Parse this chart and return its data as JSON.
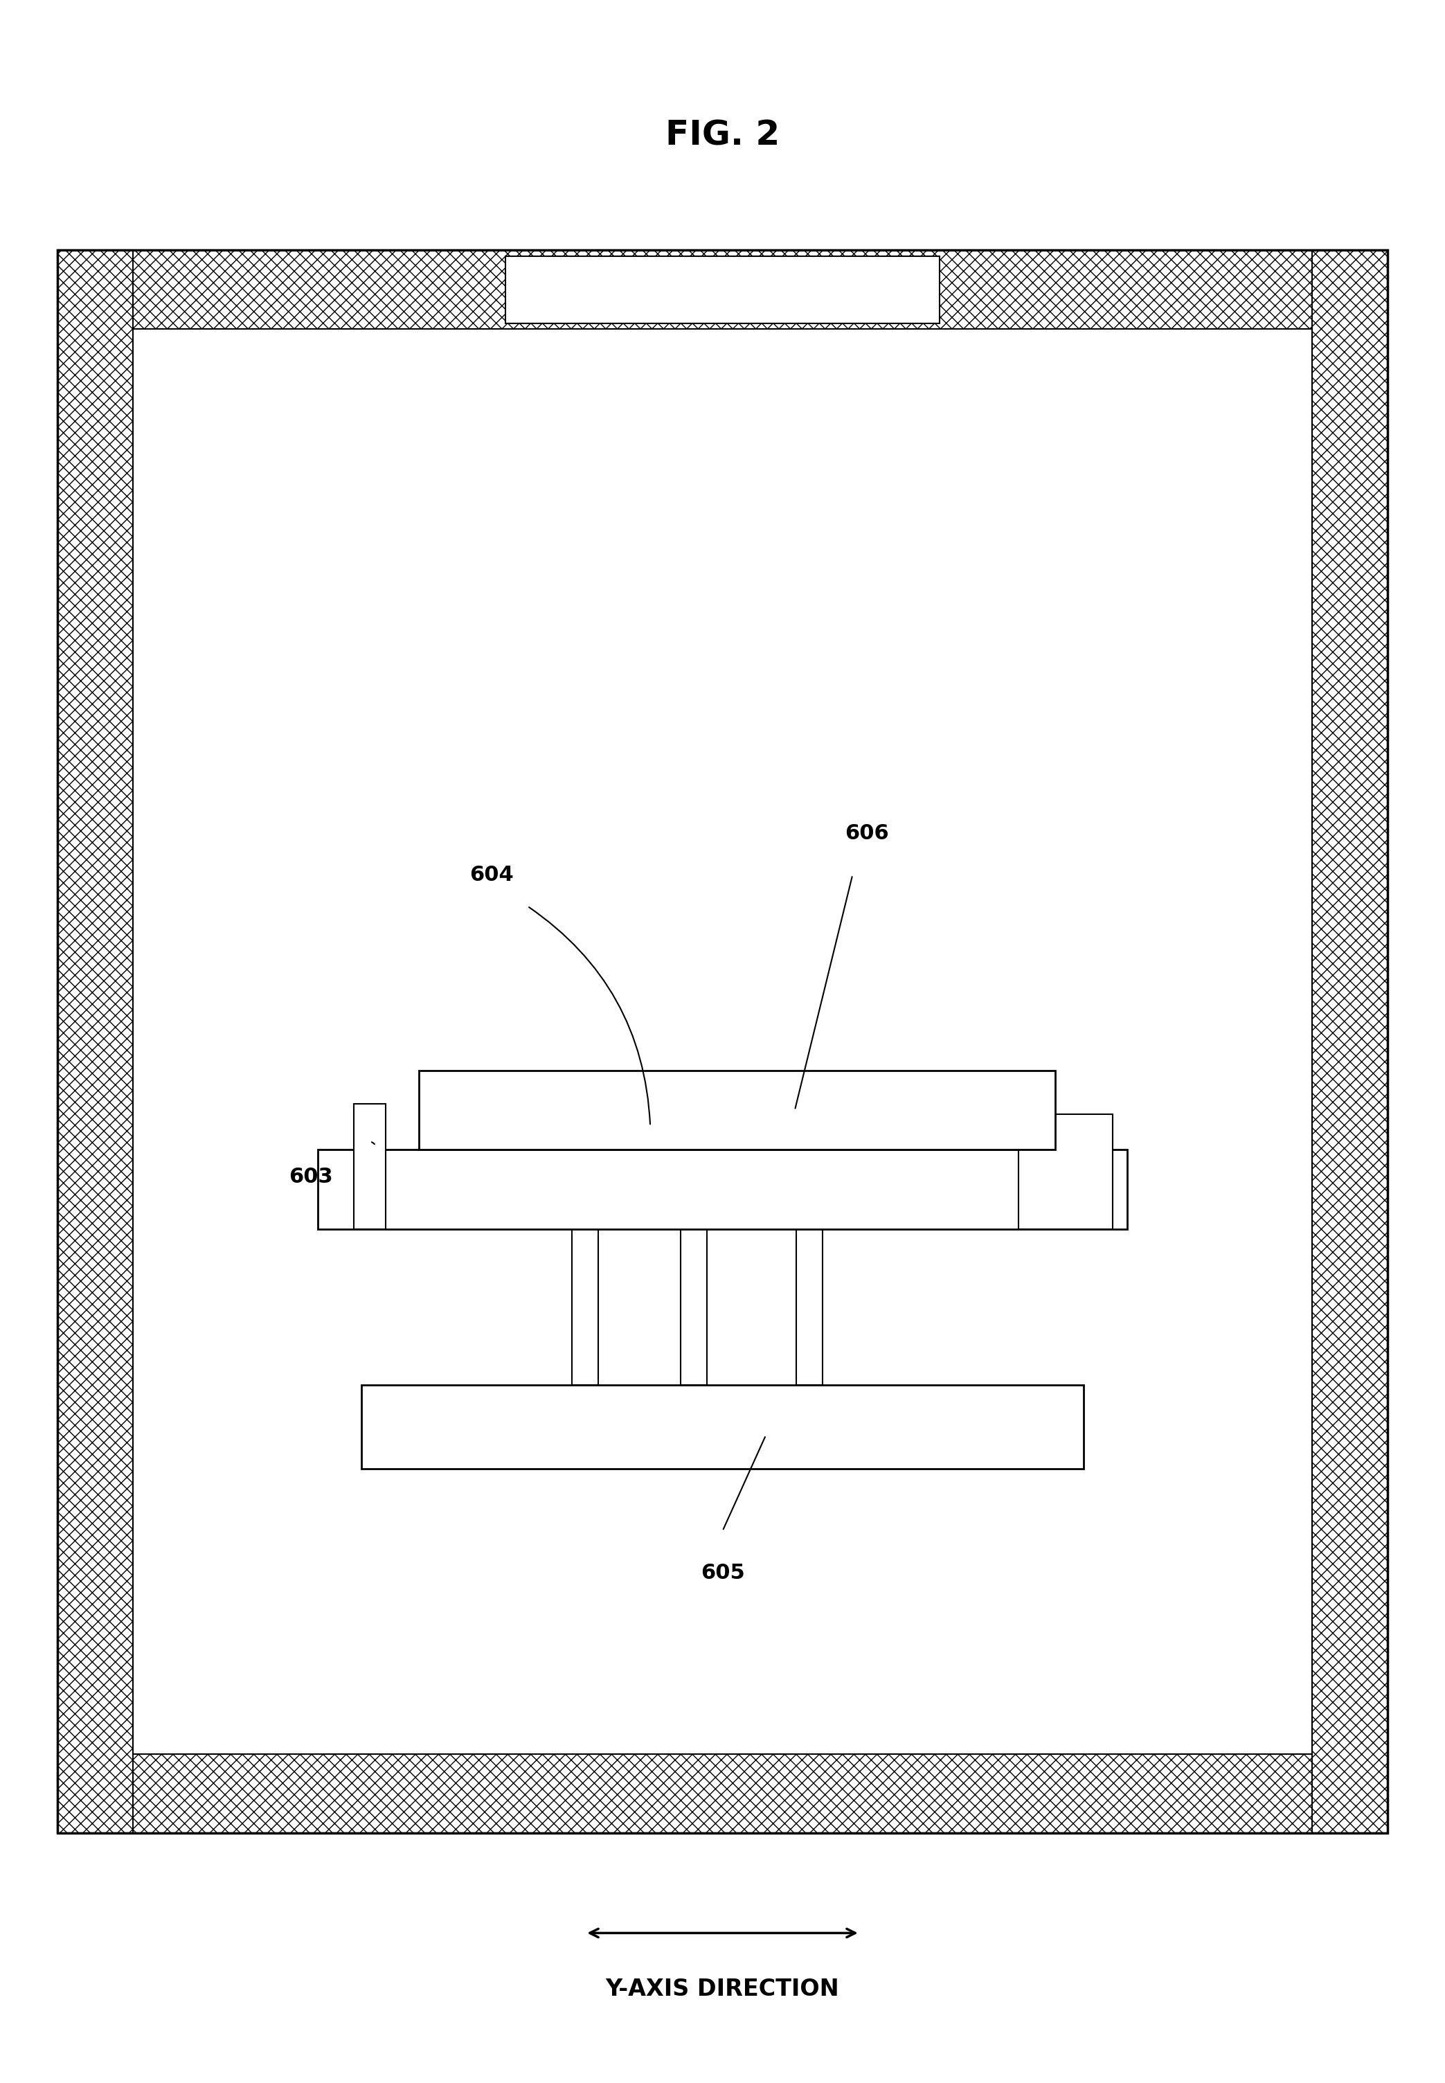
{
  "title": "FIG. 2",
  "title_fontsize": 36,
  "fig_width": 20.87,
  "fig_height": 30.08,
  "background_color": "#ffffff",
  "label_603": "603",
  "label_604": "604",
  "label_605": "605",
  "label_606": "606",
  "label_fontsize": 22,
  "arrow_label": "Y-AXIS DIRECTION",
  "arrow_label_fontsize": 24,
  "hatch_pattern": "xx"
}
